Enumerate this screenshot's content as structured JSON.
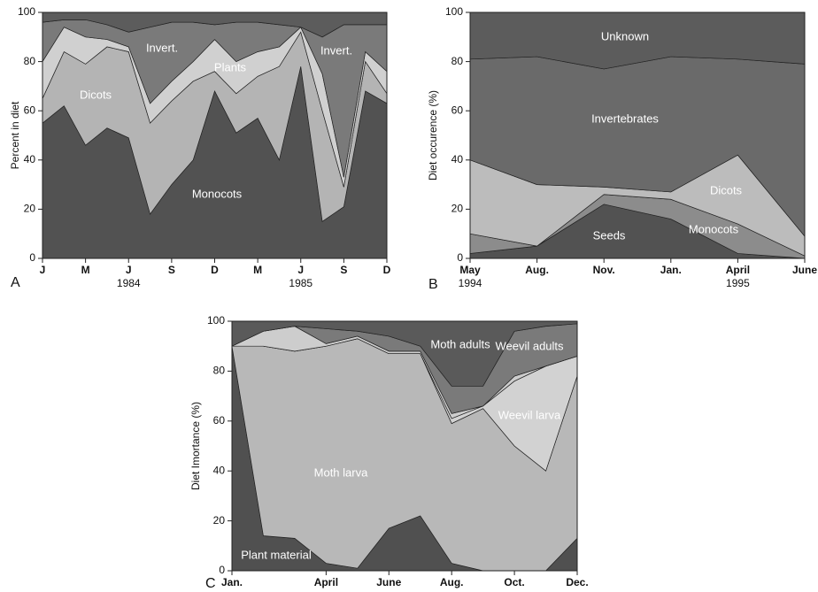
{
  "chart_data": [
    {
      "type": "area",
      "panel": "A",
      "y_label": "Percent in diet",
      "categories": [
        "J",
        null,
        "M",
        null,
        "J",
        null,
        "S",
        null,
        "D",
        null,
        "M",
        null,
        "J",
        null,
        "S",
        null,
        "D"
      ],
      "years": [
        "1984",
        "1985"
      ],
      "ylim": [
        0,
        100
      ],
      "yticks": [
        0,
        20,
        40,
        60,
        80,
        100
      ],
      "series": [
        {
          "name": "Monocots",
          "color": "#525252",
          "values": [
            55,
            62,
            46,
            53,
            49,
            18,
            30,
            40,
            68,
            51,
            57,
            40,
            78,
            15,
            21,
            68,
            63
          ]
        },
        {
          "name": "Dicots",
          "color": "#b4b4b4",
          "values": [
            10,
            22,
            33,
            33,
            35,
            37,
            34,
            32,
            8,
            16,
            17,
            38,
            14,
            45,
            8,
            12,
            4
          ]
        },
        {
          "name": "Plants",
          "color": "#d0d0d0",
          "values": [
            15,
            10,
            11,
            3,
            2,
            8,
            8,
            8,
            13,
            13,
            10,
            8,
            2,
            15,
            4,
            4,
            9
          ]
        },
        {
          "name": "Invert.",
          "color": "#7a7a7a",
          "values": [
            16,
            3,
            7,
            6,
            6,
            31,
            24,
            16,
            6,
            16,
            12,
            9,
            0,
            15,
            62,
            11,
            19
          ]
        },
        {
          "name": null,
          "color": "#5c5c5c",
          "values": [
            4,
            3,
            3,
            5,
            8,
            6,
            4,
            4,
            5,
            4,
            4,
            5,
            6,
            10,
            5,
            5,
            5
          ]
        }
      ],
      "annotations": [
        "Invert."
      ]
    },
    {
      "type": "area",
      "panel": "B",
      "y_label": "Diet occurence (%)",
      "categories": [
        "May",
        "Aug.",
        "Nov.",
        "Jan.",
        "April",
        "June"
      ],
      "years": [
        "1994",
        "1995"
      ],
      "ylim": [
        0,
        100
      ],
      "yticks": [
        0,
        20,
        40,
        60,
        80,
        100
      ],
      "series": [
        {
          "name": "Seeds",
          "color": "#525252",
          "values": [
            2,
            5,
            22,
            16,
            2,
            0
          ]
        },
        {
          "name": "Monocots",
          "color": "#8c8c8c",
          "values": [
            8,
            0,
            4,
            8,
            12,
            1
          ]
        },
        {
          "name": "Dicots",
          "color": "#bcbcbc",
          "values": [
            30,
            25,
            3,
            3,
            28,
            8
          ]
        },
        {
          "name": "Invertebrates",
          "color": "#6a6a6a",
          "values": [
            41,
            52,
            48,
            55,
            39,
            70
          ]
        },
        {
          "name": "Unknown",
          "color": "#5c5c5c",
          "values": [
            19,
            18,
            23,
            18,
            19,
            21
          ]
        }
      ]
    },
    {
      "type": "area",
      "panel": "C",
      "y_label": "Diet Imortance (%)",
      "categories": [
        "Jan.",
        null,
        null,
        "April",
        null,
        "June",
        null,
        "Aug.",
        null,
        "Oct.",
        null,
        "Dec."
      ],
      "ylim": [
        0,
        100
      ],
      "yticks": [
        0,
        20,
        40,
        60,
        80,
        100
      ],
      "series": [
        {
          "name": "Plant material",
          "color": "#505050",
          "values": [
            90,
            14,
            13,
            3,
            1,
            17,
            22,
            3,
            0,
            0,
            0,
            13
          ]
        },
        {
          "name": "Moth larva",
          "color": "#b8b8b8",
          "values": [
            0,
            76,
            75,
            87,
            92,
            70,
            65,
            56,
            65,
            50,
            40,
            65
          ]
        },
        {
          "name": "Weevil larva",
          "color": "#d2d2d2",
          "values": [
            0,
            0,
            0,
            0,
            0,
            0,
            0,
            2,
            1,
            26,
            42,
            8
          ]
        },
        {
          "name": null,
          "color": "#cdcdcd",
          "values": [
            0,
            6,
            10,
            1,
            1,
            1,
            1,
            2,
            0,
            2,
            0,
            0
          ]
        },
        {
          "name": "Weevil adults",
          "color": "#7a7a7a",
          "values": [
            0,
            0,
            0,
            6,
            2,
            6,
            2,
            11,
            8,
            18,
            16,
            13
          ]
        },
        {
          "name": "Moth adults",
          "color": "#5a5a5a",
          "values": [
            10,
            4,
            2,
            3,
            4,
            6,
            10,
            26,
            26,
            4,
            2,
            1
          ]
        }
      ]
    }
  ]
}
